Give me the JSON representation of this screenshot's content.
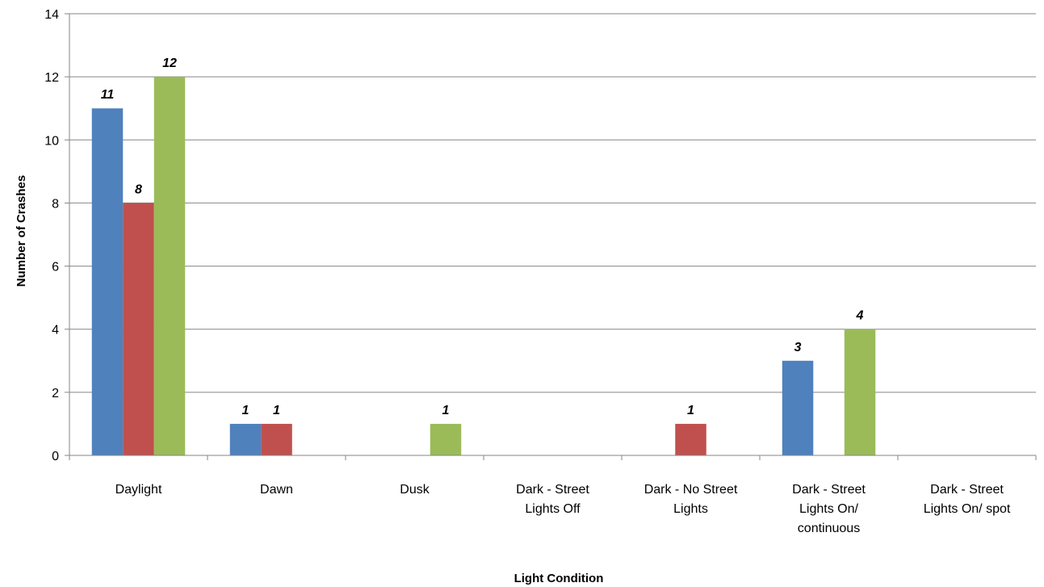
{
  "chart_data": {
    "type": "bar",
    "title": "",
    "xlabel": "Light Condition",
    "ylabel": "Number of Crashes",
    "ylim": [
      0,
      14
    ],
    "yticks": [
      0,
      2,
      4,
      6,
      8,
      10,
      12,
      14
    ],
    "grid": true,
    "legend": "none",
    "categories": [
      "Daylight",
      "Dawn",
      "Dusk",
      "Dark - Street Lights Off",
      "Dark - No Street Lights",
      "Dark - Street Lights On/ continuous",
      "Dark - Street Lights On/ spot"
    ],
    "category_lines": [
      [
        "Daylight"
      ],
      [
        "Dawn"
      ],
      [
        "Dusk"
      ],
      [
        "Dark - Street",
        "Lights Off"
      ],
      [
        "Dark - No Street",
        "Lights"
      ],
      [
        "Dark - Street",
        "Lights On/",
        "continuous"
      ],
      [
        "Dark - Street",
        "Lights On/ spot"
      ]
    ],
    "series": [
      {
        "color": "#4F81BD",
        "values": [
          11,
          1,
          0,
          0,
          0,
          3,
          0
        ]
      },
      {
        "color": "#C0504D",
        "values": [
          8,
          1,
          0,
          0,
          1,
          0,
          0
        ]
      },
      {
        "color": "#9BBB59",
        "values": [
          12,
          0,
          1,
          0,
          0,
          4,
          0
        ]
      }
    ]
  }
}
